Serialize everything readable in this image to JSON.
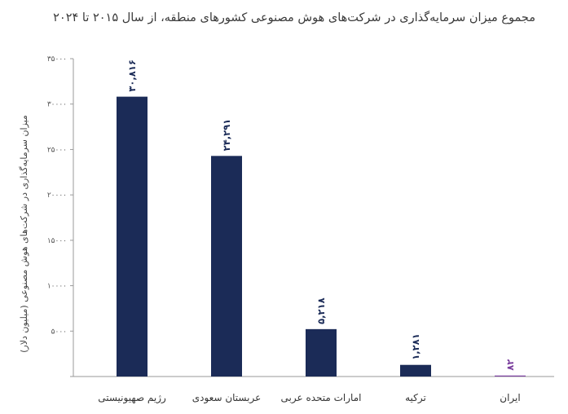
{
  "chart_data": {
    "type": "bar",
    "title": "مجموع میزان سرمایه‌گذاری در شرکت‌های هوش مصنوعی کشورهای منطقه، از سال ۲۰۱۵ تا ۲۰۲۴",
    "ylabel": "میزان سرمایه‌گذاری در شرکت‌های هوش مصنوعی (میلیون دلار)",
    "xlabel": "",
    "categories": [
      "رژیم صهیونیستی",
      "عربستان سعودی",
      "امارات متحده عربی",
      "ترکیه",
      "ایران"
    ],
    "values": [
      30816,
      24291,
      5218,
      1281,
      82
    ],
    "value_labels": [
      "۳۰,۸۱۶",
      "۲۴,۲۹۱",
      "۵,۲۱۸",
      "۱,۲۸۱",
      "۸۲"
    ],
    "yticks": [
      0,
      5000,
      10000,
      15000,
      20000,
      25000,
      30000,
      35000
    ],
    "ytick_labels": [
      "",
      "۵۰۰۰",
      "۱۰۰۰۰",
      "۱۵۰۰۰",
      "۲۰۰۰۰",
      "۲۵۰۰۰",
      "۳۰۰۰۰",
      "۳۵۰۰۰"
    ],
    "ylim": [
      0,
      35000
    ],
    "grid": false,
    "legend": "none",
    "colors": {
      "bar": "#1b2b57",
      "highlight_bar": "#7a3e9d",
      "axis": "#9a9a9a"
    },
    "highlight_index": 4
  }
}
